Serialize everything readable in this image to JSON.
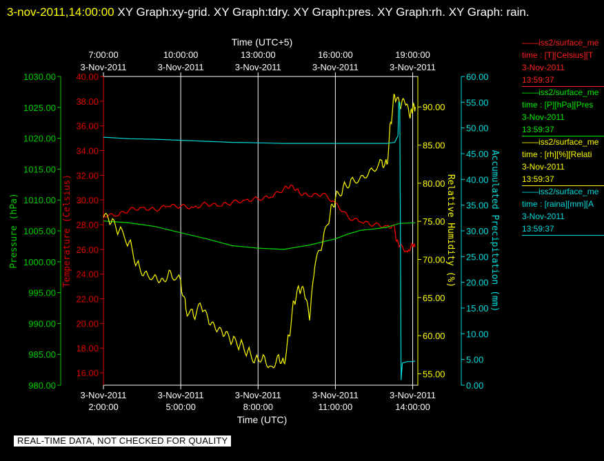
{
  "header": {
    "timestamp": "3-nov-2011,14:00:00",
    "graphs": "XY Graph:xy-grid.  XY Graph:tdry.  XY Graph:pres.  XY Graph:rh.  XY Graph: rain."
  },
  "chart_data": {
    "type": "line",
    "title": "",
    "x_top": {
      "label": "Time (UTC+5)",
      "ticks": [
        [
          "7:00:00",
          "3-Nov-2011"
        ],
        [
          "10:00:00",
          "3-Nov-2011"
        ],
        [
          "13:00:00",
          "3-Nov-2011"
        ],
        [
          "16:00:00",
          "3-Nov-2011"
        ],
        [
          "19:00:00",
          "3-Nov-2011"
        ]
      ]
    },
    "x_bottom": {
      "label": "Time (UTC)",
      "ticks": [
        [
          "3-Nov-2011",
          "2:00:00"
        ],
        [
          "3-Nov-2011",
          "5:00:00"
        ],
        [
          "3-Nov-2011",
          "8:00:00"
        ],
        [
          "3-Nov-2011",
          "11:00:00"
        ],
        [
          "3-Nov-2011",
          "14:00:00"
        ]
      ]
    },
    "xlim_utc_hours": [
      2.0,
      14.2
    ],
    "grid": true,
    "axes": {
      "pressure": {
        "label": "Pressure (hPa)",
        "color": "#00cc00",
        "ylim": [
          980,
          1030
        ],
        "ticks": [
          "1030.00",
          "1025.00",
          "1020.00",
          "1015.00",
          "1010.00",
          "1005.00",
          "1000.00",
          "995.00",
          "990.00",
          "985.00",
          "980.00"
        ]
      },
      "temperature": {
        "label": "Temperature (Celsius)",
        "color": "#dd0000",
        "ylim": [
          15,
          40
        ],
        "ticks": [
          "40.00",
          "38.00",
          "36.00",
          "34.00",
          "32.00",
          "30.00",
          "28.00",
          "26.00",
          "24.00",
          "22.00",
          "20.00",
          "18.00",
          "16.00"
        ]
      },
      "humidity": {
        "label": "Relative Humidity (%)",
        "color": "#ffff00",
        "ylim": [
          53.5,
          94
        ],
        "ticks": [
          "90.00",
          "85.00",
          "80.00",
          "75.00",
          "70.00",
          "65.00",
          "60.00",
          "55.00"
        ]
      },
      "precip": {
        "label": "Accumulated Precipitation (mm)",
        "color": "#00dddd",
        "ylim": [
          0,
          60
        ],
        "ticks": [
          "60.00",
          "55.00",
          "50.00",
          "45.00",
          "40.00",
          "35.00",
          "30.00",
          "25.00",
          "20.00",
          "15.00",
          "10.00",
          "5.00",
          "0.00"
        ]
      }
    },
    "series": [
      {
        "name": "temperature",
        "axis": "temperature",
        "color": "#ff0000",
        "x": [
          2.0,
          2.5,
          3.0,
          3.5,
          4.0,
          4.5,
          5.0,
          5.5,
          6.0,
          6.5,
          7.0,
          7.5,
          8.0,
          8.5,
          9.0,
          9.3,
          9.6,
          10.0,
          10.5,
          11.0,
          11.5,
          12.0,
          12.5,
          13.0,
          13.3,
          13.35,
          13.5,
          13.8,
          14.0,
          14.1
        ],
        "y": [
          28.8,
          28.7,
          29.2,
          29.4,
          29.2,
          29.5,
          29.5,
          29.4,
          29.7,
          29.5,
          29.8,
          30.0,
          30.1,
          30.2,
          30.9,
          31.2,
          30.6,
          30.3,
          30.5,
          29.8,
          28.6,
          28.2,
          28.0,
          27.9,
          27.8,
          26.8,
          26.3,
          25.8,
          26.4,
          26.2
        ]
      },
      {
        "name": "pressure",
        "axis": "pressure",
        "color": "#00dd00",
        "x": [
          2.0,
          3.0,
          4.0,
          5.0,
          6.0,
          7.0,
          8.0,
          9.0,
          10.0,
          11.0,
          11.5,
          12.0,
          12.5,
          13.0,
          13.5,
          14.0,
          14.1
        ],
        "y": [
          1006.6,
          1006.3,
          1005.7,
          1004.7,
          1003.7,
          1002.6,
          1002.2,
          1002.0,
          1002.7,
          1003.7,
          1004.5,
          1005.1,
          1005.3,
          1005.6,
          1006.2,
          1006.3,
          1006.3
        ]
      },
      {
        "name": "humidity",
        "axis": "humidity",
        "color": "#ffff00",
        "x": [
          2.0,
          2.3,
          2.6,
          3.0,
          3.3,
          3.6,
          4.0,
          4.3,
          4.6,
          5.0,
          5.2,
          5.5,
          5.8,
          6.1,
          6.4,
          6.7,
          7.0,
          7.3,
          7.6,
          7.9,
          8.2,
          8.5,
          8.8,
          9.0,
          9.2,
          9.4,
          9.6,
          9.8,
          10.0,
          10.2,
          10.5,
          10.8,
          11.0,
          11.3,
          11.6,
          12.0,
          12.4,
          12.8,
          13.0,
          13.15,
          13.3,
          13.5,
          13.7,
          13.9,
          14.0,
          14.1
        ],
        "y": [
          75.5,
          74.8,
          73.7,
          72.3,
          69.5,
          68.3,
          68.0,
          67.5,
          68.5,
          67.2,
          63.5,
          62.5,
          63.8,
          61.5,
          60.5,
          60.0,
          59.2,
          58.8,
          58.0,
          57.0,
          57.5,
          56.0,
          57.5,
          56.5,
          60.0,
          64.5,
          66.0,
          65.5,
          62.0,
          69.0,
          72.0,
          76.0,
          78.0,
          79.5,
          80.5,
          81.0,
          82.0,
          83.0,
          82.5,
          88.0,
          91.5,
          90.0,
          90.5,
          88.5,
          89.5,
          90.0
        ]
      },
      {
        "name": "precipitation",
        "axis": "precip",
        "color": "#00dddd",
        "x": [
          2.0,
          3.0,
          4.0,
          5.0,
          6.0,
          7.0,
          8.0,
          9.0,
          10.0,
          11.0,
          12.0,
          13.0,
          13.3,
          13.43,
          13.46,
          13.5,
          13.55,
          13.6,
          13.8,
          14.0,
          14.1
        ],
        "y": [
          48.2,
          47.9,
          47.8,
          47.6,
          47.4,
          47.2,
          47.1,
          47.0,
          47.0,
          47.0,
          47.0,
          47.0,
          47.2,
          48.5,
          55.0,
          55.0,
          1.0,
          4.3,
          4.6,
          4.6,
          4.7
        ]
      }
    ],
    "legend": {
      "placement": "right",
      "entries": [
        {
          "lines": [
            "——iss2/surface_me",
            "time : [T][Celsius][T",
            "3-Nov-2011",
            "13:59:37"
          ],
          "color": "#ff2020"
        },
        {
          "lines": [
            "——iss2/surface_me",
            "time : [P][hPa][Pres",
            "3-Nov-2011",
            "13:59:37"
          ],
          "color": "#00ee00"
        },
        {
          "lines": [
            "——iss2/surface_me",
            "time : [rh][%][Relati",
            "3-Nov-2011",
            "13:59:37"
          ],
          "color": "#ffff00"
        },
        {
          "lines": [
            "——iss2/surface_me",
            "time : [raina][mm][A",
            "3-Nov-2011",
            "13:59:37"
          ],
          "color": "#00dddd"
        }
      ]
    }
  },
  "banner": "REAL-TIME DATA, NOT CHECKED FOR QUALITY"
}
